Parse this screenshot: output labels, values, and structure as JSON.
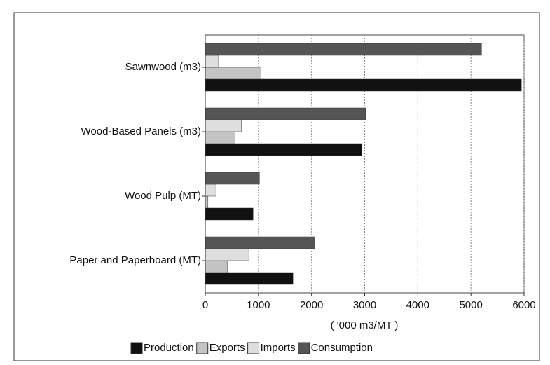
{
  "chart_data": {
    "type": "barh",
    "categories": [
      "Sawnwood (m3)",
      "Wood-Based Panels (m3)",
      "Wood Pulp (MT)",
      "Paper and Paperboard (MT)"
    ],
    "series": [
      {
        "name": "Production",
        "color": "#111111",
        "values": [
          5950,
          2950,
          900,
          1650
        ]
      },
      {
        "name": "Exports",
        "color": "#c4c4c4",
        "values": [
          1050,
          560,
          50,
          420
        ]
      },
      {
        "name": "Imports",
        "color": "#dedede",
        "values": [
          250,
          680,
          200,
          820
        ]
      },
      {
        "name": "Consumption",
        "color": "#555555",
        "values": [
          5200,
          3020,
          1020,
          2060
        ]
      }
    ],
    "xlabel": "( '000 m3/MT )",
    "xlim": [
      0,
      6000
    ],
    "xticks": [
      0,
      1000,
      2000,
      3000,
      4000,
      5000,
      6000
    ],
    "grid": true,
    "legend": "bottom"
  }
}
